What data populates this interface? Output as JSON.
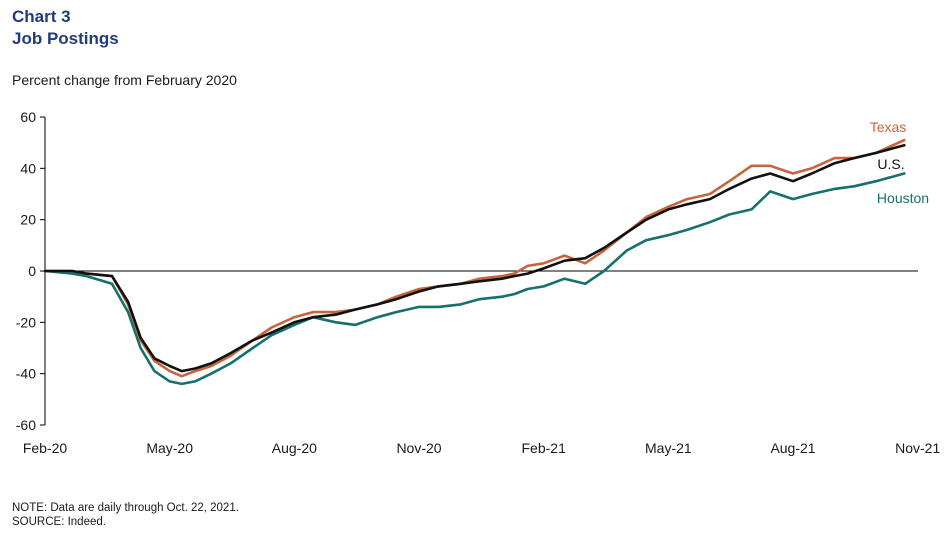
{
  "title_line1": "Chart 3",
  "title_line2": "Job Postings",
  "subtitle": "Percent change from February 2020",
  "footnote": {
    "note": "NOTE: Data are daily through Oct. 22, 2021.",
    "source": "SOURCE: Indeed."
  },
  "colors": {
    "texas": "#c8643c",
    "us": "#111111",
    "houston": "#16706e",
    "axis": "#000000"
  },
  "chart_data": {
    "type": "line",
    "x_unit": "months since Feb-20",
    "ylim": [
      -60,
      60
    ],
    "yticks": [
      -60,
      -40,
      -20,
      0,
      20,
      40,
      60
    ],
    "ytick_labels": [
      "-60",
      "-40",
      "-20",
      "0",
      "20",
      "40",
      "60"
    ],
    "xticks": [
      "Feb-20",
      "May-20",
      "Aug-20",
      "Nov-20",
      "Feb-21",
      "May-21",
      "Aug-21",
      "Nov-21"
    ],
    "series": [
      {
        "name": "Texas",
        "points": [
          [
            "2020-02-01",
            0
          ],
          [
            "2020-02-20",
            0
          ],
          [
            "2020-03-01",
            -1
          ],
          [
            "2020-03-20",
            -2
          ],
          [
            "2020-04-01",
            -13
          ],
          [
            "2020-04-10",
            -27
          ],
          [
            "2020-04-20",
            -35
          ],
          [
            "2020-05-01",
            -39
          ],
          [
            "2020-05-10",
            -41
          ],
          [
            "2020-05-20",
            -39
          ],
          [
            "2020-06-01",
            -37
          ],
          [
            "2020-06-15",
            -33
          ],
          [
            "2020-07-01",
            -27
          ],
          [
            "2020-07-15",
            -22
          ],
          [
            "2020-08-01",
            -18
          ],
          [
            "2020-08-15",
            -16
          ],
          [
            "2020-09-01",
            -16
          ],
          [
            "2020-09-15",
            -15
          ],
          [
            "2020-10-01",
            -13
          ],
          [
            "2020-10-15",
            -10
          ],
          [
            "2020-11-01",
            -7
          ],
          [
            "2020-11-15",
            -6
          ],
          [
            "2020-12-01",
            -5
          ],
          [
            "2020-12-15",
            -3
          ],
          [
            "2021-01-01",
            -2
          ],
          [
            "2021-01-10",
            -1
          ],
          [
            "2021-01-20",
            2
          ],
          [
            "2021-02-01",
            3
          ],
          [
            "2021-02-15",
            6
          ],
          [
            "2021-03-01",
            3
          ],
          [
            "2021-03-15",
            8
          ],
          [
            "2021-04-01",
            15
          ],
          [
            "2021-04-15",
            21
          ],
          [
            "2021-05-01",
            25
          ],
          [
            "2021-05-15",
            28
          ],
          [
            "2021-06-01",
            30
          ],
          [
            "2021-06-15",
            35
          ],
          [
            "2021-07-01",
            41
          ],
          [
            "2021-07-15",
            41
          ],
          [
            "2021-08-01",
            38
          ],
          [
            "2021-08-15",
            40
          ],
          [
            "2021-09-01",
            44
          ],
          [
            "2021-09-15",
            44
          ],
          [
            "2021-10-01",
            46
          ],
          [
            "2021-10-22",
            51
          ]
        ]
      },
      {
        "name": "U.S.",
        "points": [
          [
            "2020-02-01",
            0
          ],
          [
            "2020-02-20",
            0
          ],
          [
            "2020-03-01",
            -1
          ],
          [
            "2020-03-20",
            -2
          ],
          [
            "2020-04-01",
            -12
          ],
          [
            "2020-04-10",
            -26
          ],
          [
            "2020-04-20",
            -34
          ],
          [
            "2020-05-01",
            -37
          ],
          [
            "2020-05-10",
            -39
          ],
          [
            "2020-05-20",
            -38
          ],
          [
            "2020-06-01",
            -36
          ],
          [
            "2020-06-15",
            -32
          ],
          [
            "2020-07-01",
            -27
          ],
          [
            "2020-07-15",
            -24
          ],
          [
            "2020-08-01",
            -20
          ],
          [
            "2020-08-15",
            -18
          ],
          [
            "2020-09-01",
            -17
          ],
          [
            "2020-09-15",
            -15
          ],
          [
            "2020-10-01",
            -13
          ],
          [
            "2020-10-15",
            -11
          ],
          [
            "2020-11-01",
            -8
          ],
          [
            "2020-11-15",
            -6
          ],
          [
            "2020-12-01",
            -5
          ],
          [
            "2020-12-15",
            -4
          ],
          [
            "2021-01-01",
            -3
          ],
          [
            "2021-01-10",
            -2
          ],
          [
            "2021-01-20",
            -1
          ],
          [
            "2021-02-01",
            1
          ],
          [
            "2021-02-15",
            4
          ],
          [
            "2021-03-01",
            5
          ],
          [
            "2021-03-15",
            9
          ],
          [
            "2021-04-01",
            15
          ],
          [
            "2021-04-15",
            20
          ],
          [
            "2021-05-01",
            24
          ],
          [
            "2021-05-15",
            26
          ],
          [
            "2021-06-01",
            28
          ],
          [
            "2021-06-15",
            32
          ],
          [
            "2021-07-01",
            36
          ],
          [
            "2021-07-15",
            38
          ],
          [
            "2021-08-01",
            35
          ],
          [
            "2021-08-15",
            38
          ],
          [
            "2021-09-01",
            42
          ],
          [
            "2021-09-15",
            44
          ],
          [
            "2021-10-01",
            46
          ],
          [
            "2021-10-22",
            49
          ]
        ]
      },
      {
        "name": "Houston",
        "points": [
          [
            "2020-02-01",
            0
          ],
          [
            "2020-02-20",
            -1
          ],
          [
            "2020-03-01",
            -2
          ],
          [
            "2020-03-20",
            -5
          ],
          [
            "2020-04-01",
            -16
          ],
          [
            "2020-04-10",
            -30
          ],
          [
            "2020-04-20",
            -39
          ],
          [
            "2020-05-01",
            -43
          ],
          [
            "2020-05-10",
            -44
          ],
          [
            "2020-05-20",
            -43
          ],
          [
            "2020-06-01",
            -40
          ],
          [
            "2020-06-15",
            -36
          ],
          [
            "2020-07-01",
            -30
          ],
          [
            "2020-07-15",
            -25
          ],
          [
            "2020-08-01",
            -21
          ],
          [
            "2020-08-15",
            -18
          ],
          [
            "2020-09-01",
            -20
          ],
          [
            "2020-09-15",
            -21
          ],
          [
            "2020-10-01",
            -18
          ],
          [
            "2020-10-15",
            -16
          ],
          [
            "2020-11-01",
            -14
          ],
          [
            "2020-11-15",
            -14
          ],
          [
            "2020-12-01",
            -13
          ],
          [
            "2020-12-15",
            -11
          ],
          [
            "2021-01-01",
            -10
          ],
          [
            "2021-01-10",
            -9
          ],
          [
            "2021-01-20",
            -7
          ],
          [
            "2021-02-01",
            -6
          ],
          [
            "2021-02-15",
            -3
          ],
          [
            "2021-03-01",
            -5
          ],
          [
            "2021-03-15",
            0
          ],
          [
            "2021-04-01",
            8
          ],
          [
            "2021-04-15",
            12
          ],
          [
            "2021-05-01",
            14
          ],
          [
            "2021-05-15",
            16
          ],
          [
            "2021-06-01",
            19
          ],
          [
            "2021-06-15",
            22
          ],
          [
            "2021-07-01",
            24
          ],
          [
            "2021-07-15",
            31
          ],
          [
            "2021-08-01",
            28
          ],
          [
            "2021-08-15",
            30
          ],
          [
            "2021-09-01",
            32
          ],
          [
            "2021-09-15",
            33
          ],
          [
            "2021-10-01",
            35
          ],
          [
            "2021-10-22",
            38
          ]
        ]
      }
    ]
  }
}
